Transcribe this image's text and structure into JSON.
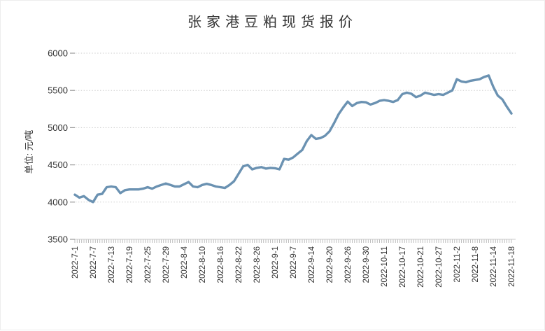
{
  "chart": {
    "title": "张家港豆粕现货报价",
    "y_axis_label": "单位: 元/吨",
    "colors": {
      "line": "#6b92b2",
      "grid_dotted": "#cdcdcd",
      "axis_line": "#c9c9c9",
      "tick": "#9a9a9a",
      "text": "#333333",
      "background": "#ffffff"
    }
  },
  "chart_data": {
    "type": "line",
    "title": "张家港豆粕现货报价",
    "xlabel": "",
    "ylabel": "单位: 元/吨",
    "ylim": [
      3500,
      6000
    ],
    "y_ticks": [
      6000,
      5500,
      5000,
      4500,
      4000,
      3500
    ],
    "grid": "horizontal dotted gridlines at each y tick",
    "legend_position": "none",
    "x_tick_label_every": 4,
    "x_tick_labels": [
      "2022-7-1",
      "2022-7-7",
      "2022-7-13",
      "2022-7-19",
      "2022-7-25",
      "2022-7-29",
      "2022-8-4",
      "2022-8-10",
      "2022-8-16",
      "2022-8-22",
      "2022-8-26",
      "2022-9-1",
      "2022-9-7",
      "2022-9-14",
      "2022-9-20",
      "2022-9-26",
      "2022-9-30",
      "2022-10-11",
      "2022-10-17",
      "2022-10-21",
      "2022-10-27",
      "2022-11-2",
      "2022-11-8",
      "2022-11-14",
      "2022-11-18"
    ],
    "x": [
      "2022-7-1",
      "2022-7-4",
      "2022-7-5",
      "2022-7-6",
      "2022-7-7",
      "2022-7-8",
      "2022-7-11",
      "2022-7-12",
      "2022-7-13",
      "2022-7-14",
      "2022-7-15",
      "2022-7-18",
      "2022-7-19",
      "2022-7-20",
      "2022-7-21",
      "2022-7-22",
      "2022-7-25",
      "2022-7-26",
      "2022-7-27",
      "2022-7-28",
      "2022-7-29",
      "2022-8-1",
      "2022-8-2",
      "2022-8-3",
      "2022-8-4",
      "2022-8-5",
      "2022-8-8",
      "2022-8-9",
      "2022-8-10",
      "2022-8-11",
      "2022-8-12",
      "2022-8-15",
      "2022-8-16",
      "2022-8-17",
      "2022-8-18",
      "2022-8-19",
      "2022-8-22",
      "2022-8-23",
      "2022-8-24",
      "2022-8-25",
      "2022-8-26",
      "2022-8-29",
      "2022-8-30",
      "2022-8-31",
      "2022-9-1",
      "2022-9-2",
      "2022-9-5",
      "2022-9-6",
      "2022-9-7",
      "2022-9-8",
      "2022-9-9",
      "2022-9-13",
      "2022-9-14",
      "2022-9-15",
      "2022-9-16",
      "2022-9-19",
      "2022-9-20",
      "2022-9-21",
      "2022-9-22",
      "2022-9-23",
      "2022-9-26",
      "2022-9-27",
      "2022-9-28",
      "2022-9-29",
      "2022-9-30",
      "2022-10-8",
      "2022-10-9",
      "2022-10-10",
      "2022-10-11",
      "2022-10-12",
      "2022-10-13",
      "2022-10-14",
      "2022-10-17",
      "2022-10-18",
      "2022-10-19",
      "2022-10-20",
      "2022-10-21",
      "2022-10-24",
      "2022-10-25",
      "2022-10-26",
      "2022-10-27",
      "2022-10-28",
      "2022-10-31",
      "2022-11-1",
      "2022-11-2",
      "2022-11-3",
      "2022-11-4",
      "2022-11-7",
      "2022-11-8",
      "2022-11-9",
      "2022-11-10",
      "2022-11-11",
      "2022-11-14",
      "2022-11-15",
      "2022-11-16",
      "2022-11-17",
      "2022-11-18"
    ],
    "values": [
      4100,
      4060,
      4080,
      4030,
      4000,
      4100,
      4110,
      4200,
      4210,
      4200,
      4120,
      4160,
      4170,
      4170,
      4170,
      4180,
      4200,
      4180,
      4210,
      4230,
      4250,
      4230,
      4210,
      4210,
      4240,
      4270,
      4210,
      4200,
      4230,
      4245,
      4230,
      4210,
      4200,
      4190,
      4230,
      4280,
      4380,
      4480,
      4500,
      4440,
      4460,
      4470,
      4450,
      4460,
      4455,
      4440,
      4580,
      4570,
      4600,
      4650,
      4700,
      4820,
      4900,
      4850,
      4860,
      4890,
      4950,
      5060,
      5180,
      5270,
      5350,
      5290,
      5330,
      5345,
      5340,
      5310,
      5330,
      5360,
      5370,
      5360,
      5345,
      5370,
      5450,
      5470,
      5455,
      5410,
      5430,
      5470,
      5455,
      5440,
      5450,
      5440,
      5470,
      5500,
      5650,
      5620,
      5610,
      5630,
      5640,
      5650,
      5680,
      5700,
      5550,
      5430,
      5380,
      5280,
      5190
    ]
  }
}
